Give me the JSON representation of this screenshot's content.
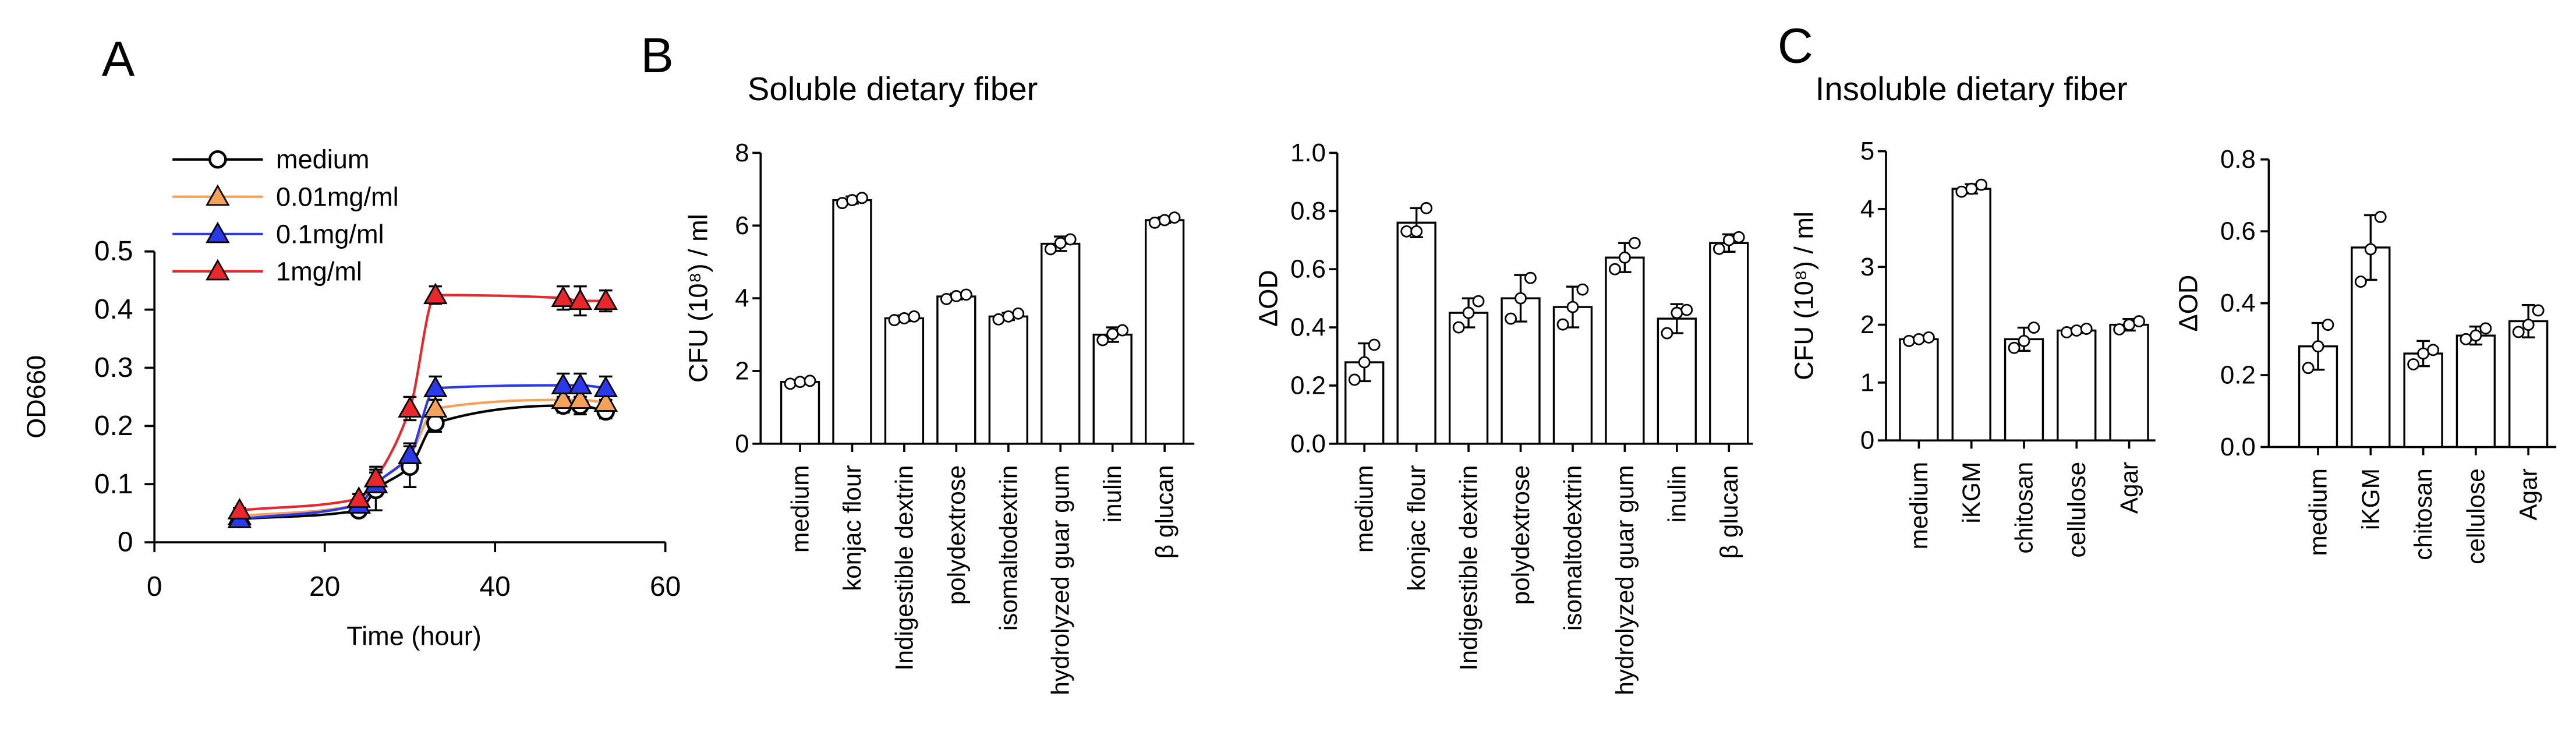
{
  "panels": [
    {
      "label": "A"
    },
    {
      "label": "B",
      "title": "Soluble dietary fiber"
    },
    {
      "label": "C",
      "title": "Insoluble dietary fiber"
    }
  ],
  "chart_data": [
    {
      "type": "line",
      "xlabel": "Time (hour)",
      "ylabel": "OD660",
      "xlim": [
        0,
        60
      ],
      "ylim": [
        0,
        0.5
      ],
      "xticks": [
        "0",
        "20",
        "40",
        "60"
      ],
      "yticks": [
        "0",
        "0.1",
        "0.2",
        "0.3",
        "0.4",
        "0.5"
      ],
      "x": [
        10,
        24,
        26,
        30,
        33,
        48,
        50,
        53
      ],
      "series": [
        {
          "name": "medium",
          "color": "#000000",
          "triangle_marker": false,
          "values": [
            0.04,
            0.055,
            0.09,
            0.13,
            0.205,
            0.235,
            0.235,
            0.225
          ],
          "errors": [
            0.004,
            0.008,
            0.035,
            0.035,
            0.015,
            0.012,
            0.015,
            0.012
          ]
        },
        {
          "name": "0.01mg/ml",
          "color": "#f4a25a",
          "triangle_marker": true,
          "values": [
            0.045,
            0.065,
            0.1,
            0.15,
            0.23,
            0.245,
            0.245,
            0.24
          ],
          "errors": [
            0.004,
            0.008,
            0.02,
            0.02,
            0.015,
            0.012,
            0.012,
            0.012
          ]
        },
        {
          "name": "0.1mg/ml",
          "color": "#2b3ae8",
          "triangle_marker": true,
          "values": [
            0.04,
            0.065,
            0.1,
            0.15,
            0.265,
            0.27,
            0.27,
            0.265
          ],
          "errors": [
            0.004,
            0.008,
            0.02,
            0.02,
            0.02,
            0.02,
            0.02,
            0.02
          ]
        },
        {
          "name": "1mg/ml",
          "color": "#e8282d",
          "triangle_marker": true,
          "values": [
            0.055,
            0.075,
            0.11,
            0.23,
            0.425,
            0.42,
            0.415,
            0.415
          ],
          "errors": [
            0.004,
            0.008,
            0.02,
            0.02,
            0.015,
            0.02,
            0.025,
            0.018
          ]
        }
      ]
    },
    {
      "type": "bar",
      "ylabel": "CFU (10⁸) / ml",
      "ylim": [
        0,
        8
      ],
      "yticks": [
        "0",
        "2",
        "4",
        "6",
        "8"
      ],
      "categories": [
        "medium",
        "konjac flour",
        "Indigestible dextrin",
        "polydextrose",
        "isomaltodextrin",
        "hydrolyzed guar gum",
        "inulin",
        "β glucan"
      ],
      "values": [
        1.7,
        6.7,
        3.45,
        4.05,
        3.5,
        5.5,
        3.0,
        6.15
      ],
      "errors": [
        0.05,
        0.1,
        0.08,
        0.08,
        0.1,
        0.2,
        0.2,
        0.08
      ],
      "points": [
        [
          1.65,
          1.7,
          1.73
        ],
        [
          6.62,
          6.7,
          6.76
        ],
        [
          3.4,
          3.45,
          3.5
        ],
        [
          3.98,
          4.06,
          4.1
        ],
        [
          3.42,
          3.5,
          3.58
        ],
        [
          5.35,
          5.52,
          5.62
        ],
        [
          2.85,
          3.02,
          3.12
        ],
        [
          6.08,
          6.15,
          6.22
        ]
      ]
    },
    {
      "type": "bar",
      "ylabel": "ΔOD",
      "ylim": [
        0,
        1.0
      ],
      "yticks": [
        "0.0",
        "0.2",
        "0.4",
        "0.6",
        "0.8",
        "1.0"
      ],
      "categories": [
        "medium",
        "konjac flour",
        "Indigestible dextrin",
        "polydextrose",
        "isomaltodextrin",
        "hydrolyzed guar gum",
        "inulin",
        "β glucan"
      ],
      "values": [
        0.28,
        0.76,
        0.45,
        0.5,
        0.47,
        0.64,
        0.43,
        0.69
      ],
      "errors": [
        0.065,
        0.05,
        0.05,
        0.08,
        0.07,
        0.05,
        0.05,
        0.03
      ],
      "points": [
        [
          0.22,
          0.28,
          0.34
        ],
        [
          0.73,
          0.73,
          0.81
        ],
        [
          0.4,
          0.45,
          0.49
        ],
        [
          0.43,
          0.5,
          0.57
        ],
        [
          0.41,
          0.47,
          0.53
        ],
        [
          0.6,
          0.64,
          0.69
        ],
        [
          0.38,
          0.45,
          0.46
        ],
        [
          0.67,
          0.7,
          0.71
        ]
      ]
    },
    {
      "type": "bar",
      "ylabel": "CFU (10⁸) / ml",
      "ylim": [
        0,
        5
      ],
      "yticks": [
        "0",
        "1",
        "2",
        "3",
        "4",
        "5"
      ],
      "categories": [
        "medium",
        "iKGM",
        "chitosan",
        "cellulose",
        "Agar"
      ],
      "values": [
        1.75,
        4.35,
        1.75,
        1.9,
        2.0
      ],
      "errors": [
        0.03,
        0.08,
        0.2,
        0.04,
        0.1
      ],
      "points": [
        [
          1.72,
          1.75,
          1.78
        ],
        [
          4.3,
          4.35,
          4.42
        ],
        [
          1.6,
          1.72,
          1.95
        ],
        [
          1.87,
          1.9,
          1.93
        ],
        [
          1.92,
          2.0,
          2.06
        ]
      ]
    },
    {
      "type": "bar",
      "ylabel": "ΔOD",
      "ylim": [
        0,
        0.8
      ],
      "yticks": [
        "0.0",
        "0.2",
        "0.4",
        "0.6",
        "0.8"
      ],
      "categories": [
        "medium",
        "iKGM",
        "chitosan",
        "cellulose",
        "Agar"
      ],
      "values": [
        0.28,
        0.555,
        0.26,
        0.31,
        0.35
      ],
      "errors": [
        0.065,
        0.09,
        0.035,
        0.025,
        0.045
      ],
      "points": [
        [
          0.22,
          0.28,
          0.34
        ],
        [
          0.46,
          0.55,
          0.64
        ],
        [
          0.23,
          0.26,
          0.27
        ],
        [
          0.3,
          0.31,
          0.33
        ],
        [
          0.32,
          0.34,
          0.38
        ]
      ]
    }
  ]
}
